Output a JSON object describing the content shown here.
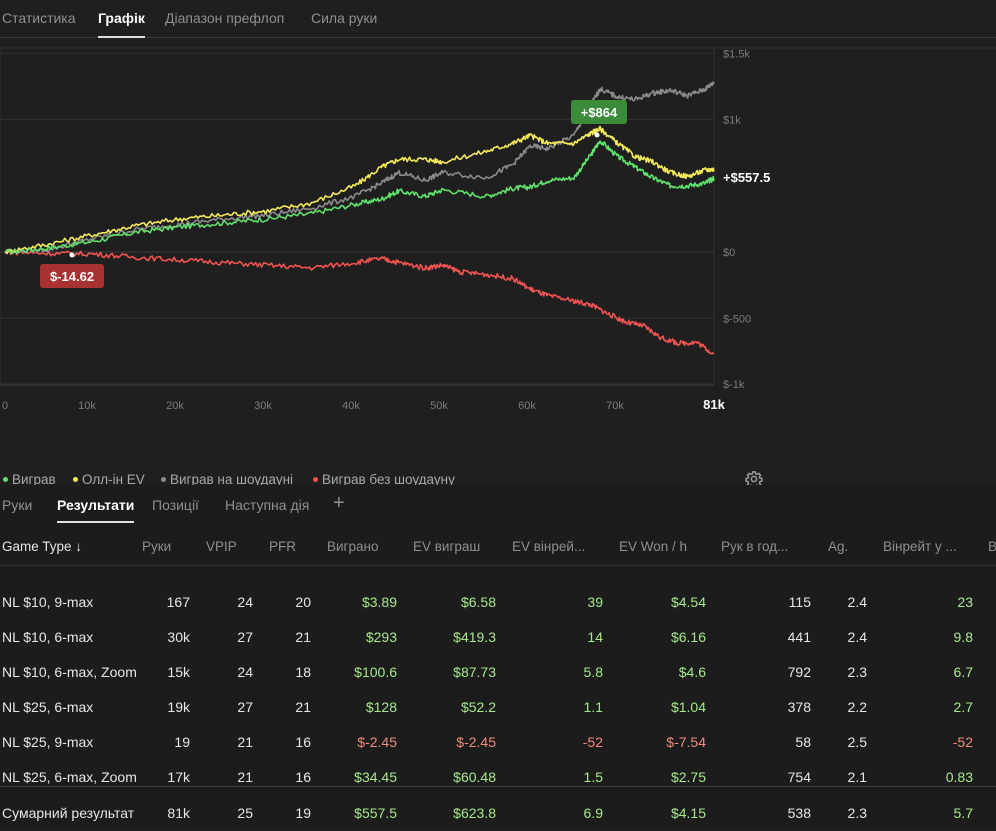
{
  "top_tabs": [
    "Статистика",
    "Графік",
    "Діапазон префлоп",
    "Сила руки"
  ],
  "active_top_tab": "Графік",
  "colors": {
    "won": "#5fe06a",
    "allin_ev": "#f3e95a",
    "won_showdown": "#8a8a8a",
    "won_no_showdown": "#ef5350",
    "badge_positive": "#3b8c3a",
    "badge_negative": "#a83232"
  },
  "chart_data": {
    "type": "line",
    "x_ticks": [
      "0",
      "10k",
      "20k",
      "30k",
      "40k",
      "50k",
      "60k",
      "70k",
      "81k"
    ],
    "y_ticks": [
      "$1.5k",
      "$1k",
      "$0",
      "$-500",
      "$-1k"
    ],
    "x_range": [
      0,
      81000
    ],
    "y_range": [
      -1000,
      1500
    ],
    "annotations": {
      "max_label": "+$864",
      "min_label": "$-14.62",
      "end_label": "+$557.5"
    },
    "series": [
      {
        "name": "Виграв",
        "color": "#5fe06a",
        "x": [
          0,
          5000,
          10000,
          15000,
          20000,
          25000,
          30000,
          35000,
          40000,
          43000,
          45000,
          48000,
          50000,
          55000,
          58000,
          60000,
          62000,
          65000,
          67000,
          68000,
          70000,
          72000,
          74000,
          76000,
          78000,
          80000,
          81000
        ],
        "y": [
          0,
          30,
          80,
          150,
          190,
          220,
          250,
          290,
          360,
          400,
          460,
          420,
          470,
          420,
          480,
          490,
          540,
          560,
          740,
          840,
          720,
          640,
          560,
          500,
          500,
          520,
          557.5
        ]
      },
      {
        "name": "Олл-ін EV",
        "color": "#f3e95a",
        "x": [
          0,
          5000,
          10000,
          15000,
          20000,
          25000,
          30000,
          35000,
          40000,
          43000,
          45000,
          48000,
          50000,
          55000,
          58000,
          60000,
          62000,
          65000,
          67000,
          68000,
          70000,
          72000,
          74000,
          76000,
          78000,
          80000,
          81000
        ],
        "y": [
          0,
          60,
          130,
          200,
          250,
          280,
          310,
          370,
          500,
          640,
          700,
          700,
          680,
          760,
          820,
          880,
          820,
          820,
          900,
          930,
          820,
          720,
          680,
          600,
          570,
          620,
          623.8
        ]
      },
      {
        "name": "Виграв на шоудауні",
        "color": "#8a8a8a",
        "x": [
          0,
          5000,
          10000,
          15000,
          20000,
          25000,
          30000,
          35000,
          40000,
          43000,
          45000,
          48000,
          50000,
          55000,
          58000,
          60000,
          62000,
          65000,
          67000,
          68000,
          70000,
          72000,
          74000,
          76000,
          78000,
          80000,
          81000
        ],
        "y": [
          0,
          20,
          100,
          170,
          210,
          250,
          280,
          330,
          420,
          520,
          600,
          540,
          600,
          560,
          660,
          800,
          780,
          880,
          1120,
          1230,
          1170,
          1150,
          1200,
          1220,
          1180,
          1230,
          1280
        ]
      },
      {
        "name": "Виграв без шоудауну",
        "color": "#ef5350",
        "x": [
          0,
          5000,
          10000,
          15000,
          20000,
          25000,
          30000,
          35000,
          40000,
          43000,
          45000,
          48000,
          50000,
          52000,
          55000,
          58000,
          60000,
          62000,
          65000,
          67000,
          69000,
          71000,
          73000,
          75000,
          77000,
          79000,
          81000
        ],
        "y": [
          0,
          -10,
          -14.62,
          -40,
          -60,
          -80,
          -100,
          -120,
          -80,
          -50,
          -80,
          -120,
          -100,
          -150,
          -170,
          -200,
          -280,
          -330,
          -370,
          -400,
          -470,
          -530,
          -560,
          -650,
          -690,
          -680,
          -770
        ]
      }
    ]
  },
  "legend": [
    "Виграв",
    "Олл-ін EV",
    "Виграв на шоудауні",
    "Виграв без шоудауну"
  ],
  "sub_tabs": [
    "Руки",
    "Результати",
    "Позиції",
    "Наступна дія"
  ],
  "active_sub_tab": "Результати",
  "plus_label": "+",
  "table": {
    "columns": [
      "Game Type ↓",
      "Руки",
      "VPIP",
      "PFR",
      "Виграно",
      "EV виграш",
      "EV вінрей...",
      "EV Won / h",
      "Рук в год...",
      "Ag.",
      "Вінрейт у ...",
      "B"
    ],
    "rows": [
      [
        "NL $10, 9-max",
        "167",
        "24",
        "20",
        "$3.89",
        "$6.58",
        "39",
        "$4.54",
        "115",
        "2.4",
        "23"
      ],
      [
        "NL $10, 6-max",
        "30k",
        "27",
        "21",
        "$293",
        "$419.3",
        "14",
        "$6.16",
        "441",
        "2.4",
        "9.8"
      ],
      [
        "NL $10, 6-max, Zoom",
        "15k",
        "24",
        "18",
        "$100.6",
        "$87.73",
        "5.8",
        "$4.6",
        "792",
        "2.3",
        "6.7"
      ],
      [
        "NL $25, 6-max",
        "19k",
        "27",
        "21",
        "$128",
        "$52.2",
        "1.1",
        "$1.04",
        "378",
        "2.2",
        "2.7"
      ],
      [
        "NL $25, 9-max",
        "19",
        "21",
        "16",
        "$-2.45",
        "$-2.45",
        "-52",
        "$-7.54",
        "58",
        "2.5",
        "-52"
      ],
      [
        "NL $25, 6-max, Zoom",
        "17k",
        "21",
        "16",
        "$34.45",
        "$60.48",
        "1.5",
        "$2.75",
        "754",
        "2.1",
        "0.83"
      ]
    ],
    "total": [
      "Сумарний результат",
      "81k",
      "25",
      "19",
      "$557.5",
      "$623.8",
      "6.9",
      "$4.15",
      "538",
      "2.3",
      "5.7"
    ]
  }
}
